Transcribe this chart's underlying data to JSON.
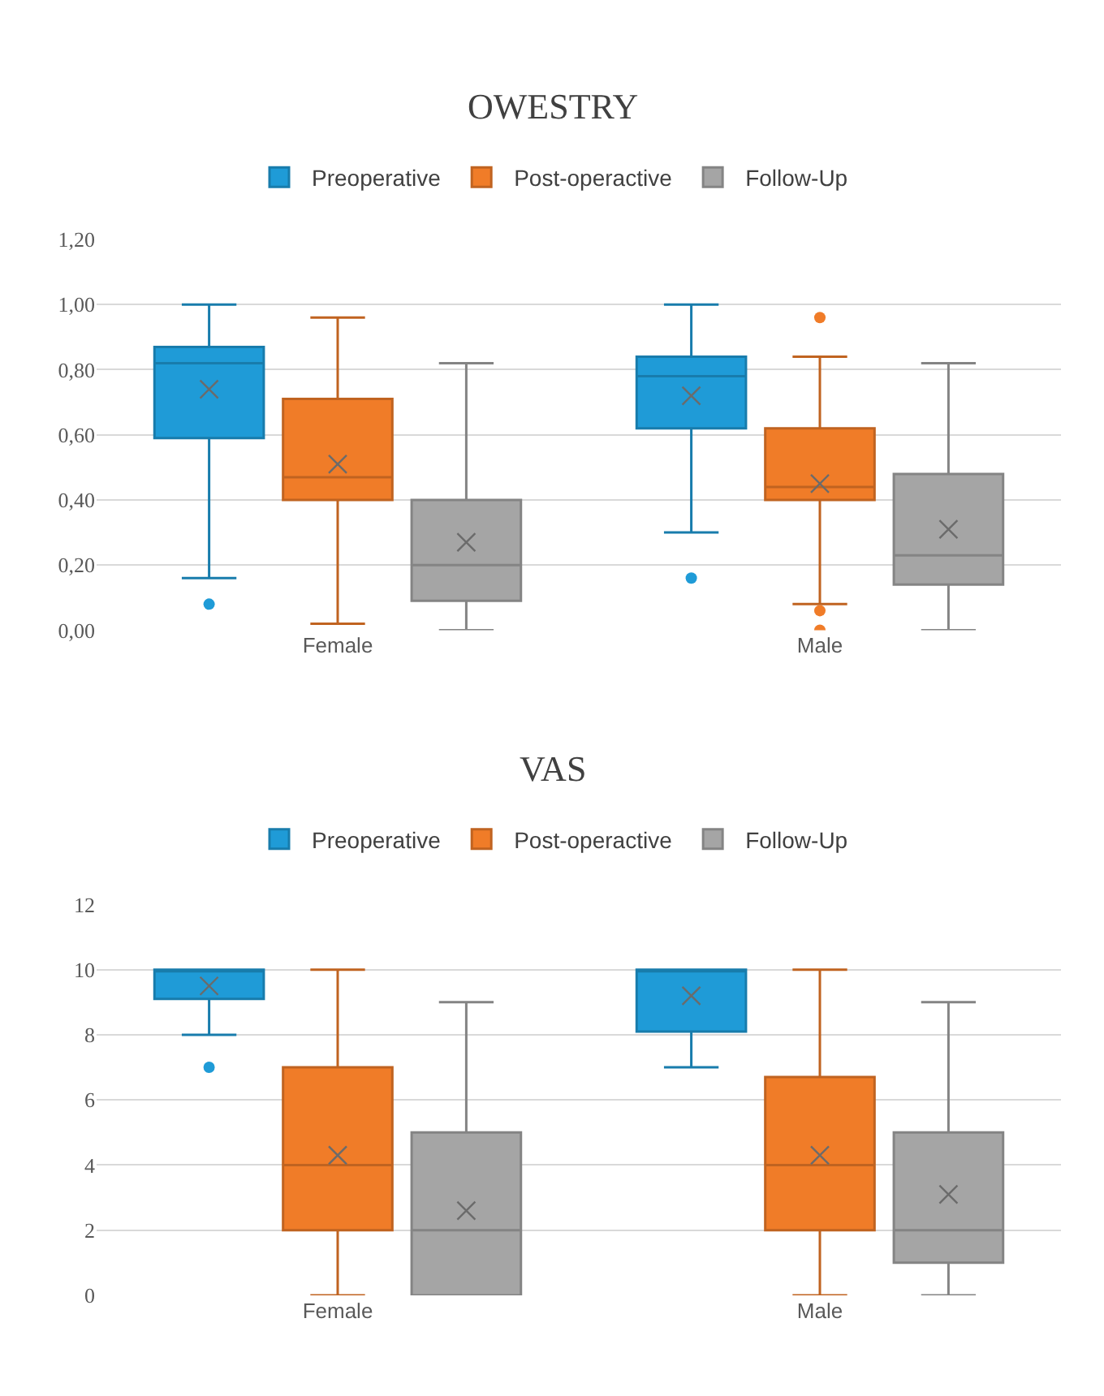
{
  "chart_data": [
    {
      "type": "box",
      "title": "OWESTRY",
      "categories": [
        "Female",
        "Male"
      ],
      "legend": "top",
      "grid": "y",
      "marker": "circle",
      "ylim": [
        0,
        1.2
      ],
      "yticks": [
        {
          "value": 0,
          "label": "0,00"
        },
        {
          "value": 0.2,
          "label": "0,20"
        },
        {
          "value": 0.4,
          "label": "0,40"
        },
        {
          "value": 0.6,
          "label": "0,60"
        },
        {
          "value": 0.8,
          "label": "0,80"
        },
        {
          "value": 1.0,
          "label": "1,00"
        },
        {
          "value": 1.2,
          "label": "1,20"
        }
      ],
      "series": [
        {
          "name": "Preoperative",
          "color": "#1f9bd7",
          "boxes": [
            {
              "low": 0.16,
              "q1": 0.59,
              "median": 0.82,
              "q3": 0.87,
              "high": 1.0,
              "mean": 0.74,
              "outliers": [
                0.08
              ]
            },
            {
              "low": 0.3,
              "q1": 0.62,
              "median": 0.78,
              "q3": 0.84,
              "high": 1.0,
              "mean": 0.72,
              "outliers": [
                0.16
              ]
            }
          ]
        },
        {
          "name": "Post-operactive",
          "color": "#f07c28",
          "boxes": [
            {
              "low": 0.02,
              "q1": 0.4,
              "median": 0.47,
              "q3": 0.71,
              "high": 0.96,
              "mean": 0.51
            },
            {
              "low": 0.08,
              "q1": 0.4,
              "median": 0.44,
              "q3": 0.62,
              "high": 0.84,
              "mean": 0.45,
              "outliers": [
                0.96,
                0.06,
                0.0
              ]
            }
          ]
        },
        {
          "name": "Follow-Up",
          "color": "#a5a5a5",
          "boxes": [
            {
              "low": 0,
              "q1": 0.09,
              "median": 0.2,
              "q3": 0.4,
              "high": 0.82,
              "mean": 0.27
            },
            {
              "low": 0,
              "q1": 0.14,
              "median": 0.23,
              "q3": 0.48,
              "high": 0.82,
              "mean": 0.31
            }
          ]
        }
      ]
    },
    {
      "type": "box",
      "title": "VAS",
      "categories": [
        "Female",
        "Male"
      ],
      "legend": "top",
      "grid": "y",
      "marker": "circle",
      "ylim": [
        0,
        12
      ],
      "yticks": [
        0,
        2,
        4,
        6,
        8,
        10,
        12
      ],
      "series": [
        {
          "name": "Preoperative",
          "color": "#1f9bd7",
          "boxes": [
            {
              "low": 8,
              "q1": 9.1,
              "median": 10,
              "q3": 10,
              "high": 10,
              "mean": 9.5,
              "outliers": [
                7
              ]
            },
            {
              "low": 7,
              "q1": 8.1,
              "median": 10,
              "q3": 10,
              "high": 10,
              "mean": 9.2
            }
          ]
        },
        {
          "name": "Post-operactive",
          "color": "#f07c28",
          "boxes": [
            {
              "low": 0,
              "q1": 2,
              "median": 4,
              "q3": 7,
              "high": 10,
              "mean": 4.3
            },
            {
              "low": 0,
              "q1": 2,
              "median": 4,
              "q3": 6.7,
              "high": 10,
              "mean": 4.3
            }
          ]
        },
        {
          "name": "Follow-Up",
          "color": "#a5a5a5",
          "boxes": [
            {
              "low": 0,
              "q1": 0,
              "median": 2,
              "q3": 5,
              "high": 9,
              "mean": 2.6
            },
            {
              "low": 0,
              "q1": 1,
              "median": 2,
              "q3": 5,
              "high": 9,
              "mean": 3.1
            }
          ]
        }
      ]
    }
  ]
}
